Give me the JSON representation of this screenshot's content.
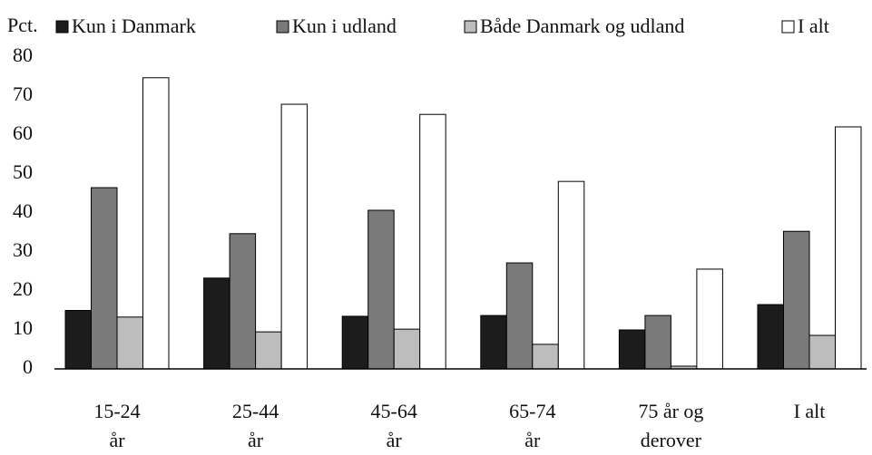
{
  "chart_data": {
    "type": "bar",
    "y_label": "Pct.",
    "categories": [
      [
        "15-24",
        "år"
      ],
      [
        "25-44",
        "år"
      ],
      [
        "45-64",
        "år"
      ],
      [
        "65-74",
        "år"
      ],
      [
        "75 år og",
        "derover"
      ],
      [
        "I alt"
      ]
    ],
    "series": [
      {
        "name": "Kun i Danmark",
        "color": "#1c1c1c",
        "values": [
          15,
          23.3,
          13.5,
          13.7,
          10,
          16.5
        ]
      },
      {
        "name": "Kun i udland",
        "color": "#7a7a7a",
        "values": [
          46.5,
          34.7,
          40.7,
          27.2,
          13.7,
          35.3
        ]
      },
      {
        "name": "Både Danmark og udland",
        "color": "#bdbdbd",
        "values": [
          13.3,
          9.5,
          10.2,
          6.3,
          0.7,
          8.6
        ]
      },
      {
        "name": "I alt",
        "color": "#ffffff",
        "values": [
          74.7,
          67.9,
          65.3,
          48.1,
          25.6,
          62.1
        ]
      }
    ],
    "ylim": [
      0,
      80
    ],
    "yticks": [
      0,
      10,
      20,
      30,
      40,
      50,
      60,
      70,
      80
    ],
    "grid": false
  }
}
